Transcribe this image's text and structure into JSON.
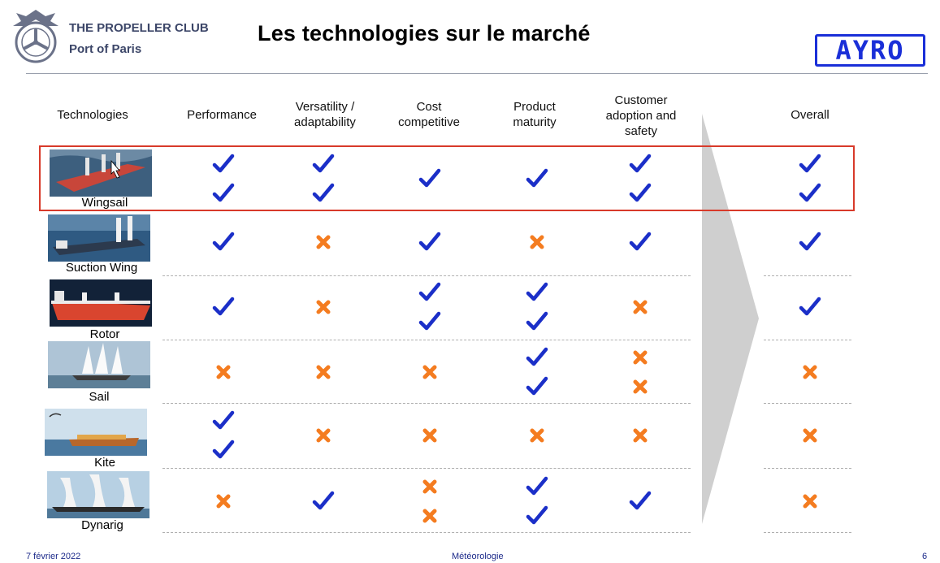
{
  "header": {
    "org_name": "THE PROPELLER CLUB",
    "org_port": "Port of Paris",
    "title": "Les technologies sur le marché",
    "brand_logo": "AYRO",
    "brand_color": "#1a2fd8"
  },
  "table": {
    "columns": [
      "Technologies",
      "Performance",
      "Versatility / adaptability",
      "Cost competitive",
      "Product maturity",
      "Customer adoption and safety",
      "Overall"
    ],
    "rows": [
      {
        "name": "Wingsail",
        "highlighted": true,
        "cells": [
          [
            "check",
            "check"
          ],
          [
            "check",
            "check"
          ],
          [
            "check"
          ],
          [
            "check"
          ],
          [
            "check",
            "check"
          ],
          [
            "check",
            "check"
          ]
        ]
      },
      {
        "name": "Suction Wing",
        "cells": [
          [
            "check"
          ],
          [
            "cross"
          ],
          [
            "check"
          ],
          [
            "cross"
          ],
          [
            "check"
          ],
          [
            "check"
          ]
        ]
      },
      {
        "name": "Rotor",
        "cells": [
          [
            "check"
          ],
          [
            "cross"
          ],
          [
            "check",
            "check"
          ],
          [
            "check",
            "check"
          ],
          [
            "cross"
          ],
          [
            "check"
          ]
        ]
      },
      {
        "name": "Sail",
        "cells": [
          [
            "cross"
          ],
          [
            "cross"
          ],
          [
            "cross"
          ],
          [
            "check",
            "check"
          ],
          [
            "cross",
            "cross"
          ],
          [
            "cross"
          ]
        ]
      },
      {
        "name": "Kite",
        "cells": [
          [
            "check",
            "check"
          ],
          [
            "cross"
          ],
          [
            "cross"
          ],
          [
            "cross"
          ],
          [
            "cross"
          ],
          [
            "cross"
          ]
        ]
      },
      {
        "name": "Dynarig",
        "cells": [
          [
            "cross"
          ],
          [
            "check"
          ],
          [
            "cross",
            "cross"
          ],
          [
            "check",
            "check"
          ],
          [
            "check"
          ],
          [
            "cross"
          ]
        ]
      }
    ],
    "highlight_color": "#d83a2a",
    "check_color": "#1b2fc8",
    "cross_color": "#f47c20"
  },
  "footer": {
    "date": "7 février 2022",
    "topic": "Météorologie",
    "page": "6"
  }
}
